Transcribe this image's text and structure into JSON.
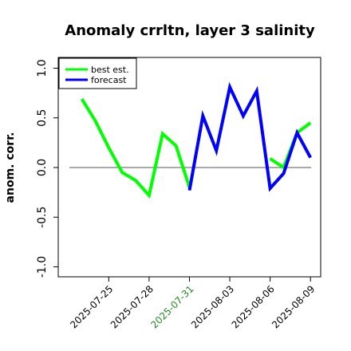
{
  "chart_data": {
    "type": "line",
    "title": "Anomaly crrltn, layer 3 salinity",
    "xlabel": "",
    "ylabel": "anom. corr.",
    "ylim": [
      -1.0,
      1.0
    ],
    "yticks": [
      -1.0,
      -0.5,
      0.0,
      0.5,
      1.0
    ],
    "ytick_labels": [
      "-1.0",
      "-0.5",
      "0.0",
      "0.5",
      "1.0"
    ],
    "x_dates": [
      "2025-07-23",
      "2025-07-24",
      "2025-07-25",
      "2025-07-26",
      "2025-07-27",
      "2025-07-28",
      "2025-07-29",
      "2025-07-30",
      "2025-07-31",
      "2025-08-01",
      "2025-08-02",
      "2025-08-03",
      "2025-08-04",
      "2025-08-05",
      "2025-08-06",
      "2025-08-07",
      "2025-08-08",
      "2025-08-09"
    ],
    "xticks": [
      "2025-07-25",
      "2025-07-28",
      "2025-07-31",
      "2025-08-03",
      "2025-08-06",
      "2025-08-09"
    ],
    "xtick_colors": [
      "#000000",
      "#000000",
      "#228b22",
      "#000000",
      "#000000",
      "#000000"
    ],
    "reference_line": 0.0,
    "legend_position": "top-left",
    "series": [
      {
        "name": "best est.",
        "color": "#00ff00",
        "values": [
          0.69,
          0.47,
          0.2,
          -0.05,
          -0.13,
          -0.28,
          0.34,
          0.22,
          -0.2,
          null,
          null,
          null,
          null,
          null,
          0.09,
          0.0,
          0.35,
          0.45
        ]
      },
      {
        "name": "forecast",
        "color": "#0000ff",
        "values": [
          null,
          null,
          null,
          null,
          null,
          null,
          null,
          null,
          -0.23,
          0.52,
          0.17,
          0.81,
          0.52,
          0.77,
          -0.21,
          -0.06,
          0.35,
          0.1
        ]
      }
    ]
  }
}
